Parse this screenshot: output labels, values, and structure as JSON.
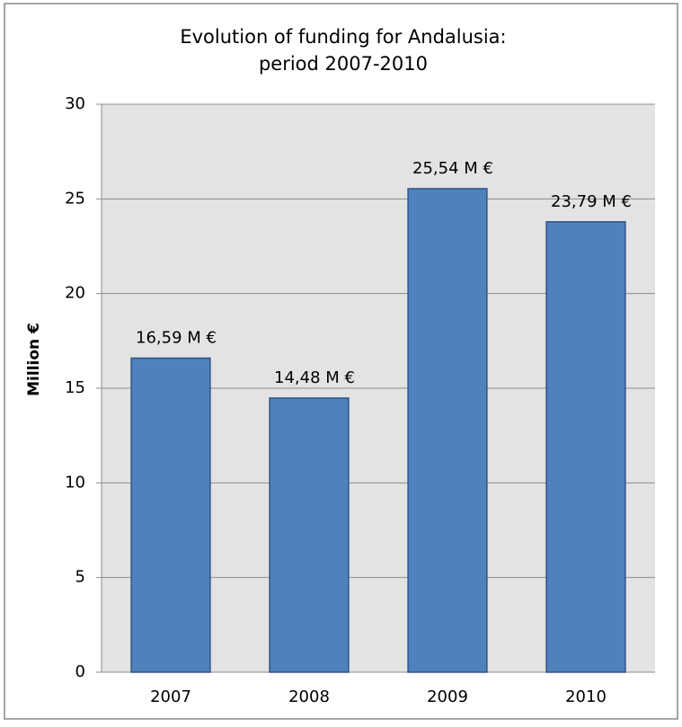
{
  "chart_data": {
    "type": "bar",
    "title": [
      "Evolution of funding for Andalusia:",
      "period 2007-2010"
    ],
    "y_label": "Million €",
    "categories": [
      "2007",
      "2008",
      "2009",
      "2010"
    ],
    "values": [
      16.59,
      14.48,
      25.54,
      23.79
    ],
    "value_labels": [
      "16,59 M €",
      "14,48 M €",
      "25,54 M €",
      "23,79 M €"
    ],
    "color": "#4f81bd",
    "ylim": [
      0,
      30
    ],
    "yticks": [
      0,
      5,
      10,
      15,
      20,
      25,
      30
    ],
    "grid": true
  }
}
